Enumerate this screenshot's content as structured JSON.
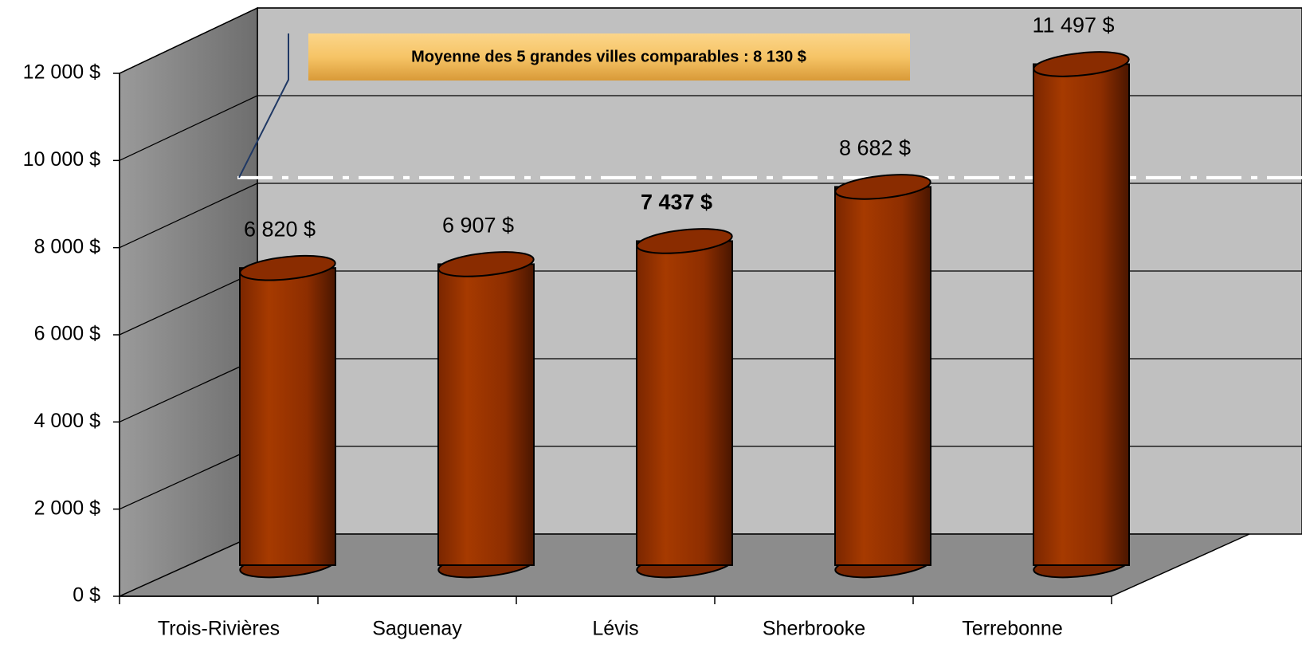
{
  "chart_data": {
    "type": "bar3d",
    "categories": [
      "Trois-Rivières",
      "Saguenay",
      "Lévis",
      "Sherbrooke",
      "Terrebonne"
    ],
    "values": [
      6820,
      6907,
      7437,
      8682,
      11497
    ],
    "value_labels": [
      "6 820 $",
      "6 907 $",
      "7 437 $",
      "8 682 $",
      "11 497 $"
    ],
    "highlight_index": 2,
    "color": "#a33500",
    "ylim": [
      0,
      12000
    ],
    "yticks": [
      {
        "value": 0,
        "label": "0 $"
      },
      {
        "value": 2000,
        "label": "2 000 $"
      },
      {
        "value": 4000,
        "label": "4 000 $"
      },
      {
        "value": 6000,
        "label": "6 000 $"
      },
      {
        "value": 8000,
        "label": "8 000 $"
      },
      {
        "value": 10000,
        "label": "10 000 $"
      },
      {
        "value": 12000,
        "label": "12 000 $"
      }
    ],
    "grid": true,
    "average": {
      "value": 8130,
      "label": "Moyenne des 5 grandes villes comparables : 8 130 $"
    }
  }
}
